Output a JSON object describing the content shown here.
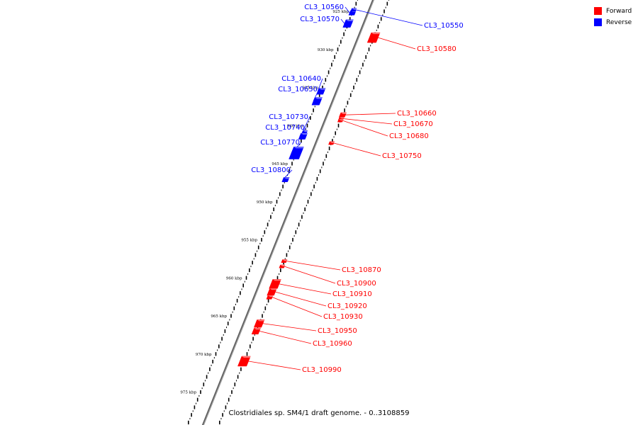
{
  "legend": {
    "forward_label": "Forward",
    "reverse_label": "Reverse",
    "forward_color": "#ff0000",
    "reverse_color": "#0000ff"
  },
  "caption": "Clostridiales sp. SM4/1 draft genome. - 0..3108859",
  "axis": {
    "unit": "kbp",
    "ticks": [
      {
        "kbp": 925,
        "label": "925 kbp"
      },
      {
        "kbp": 930,
        "label": "930 kbp"
      },
      {
        "kbp": 935,
        "label": "935 kbp"
      },
      {
        "kbp": 940,
        "label": "940 kbp"
      },
      {
        "kbp": 945,
        "label": "945 kbp"
      },
      {
        "kbp": 950,
        "label": "950 kbp"
      },
      {
        "kbp": 955,
        "label": "955 kbp"
      },
      {
        "kbp": 960,
        "label": "960 kbp"
      },
      {
        "kbp": 965,
        "label": "965 kbp"
      },
      {
        "kbp": 970,
        "label": "970 kbp"
      },
      {
        "kbp": 975,
        "label": "975 kbp"
      }
    ]
  },
  "genes": [
    {
      "name": "CL3_10560",
      "strand": "reverse",
      "start_kbp": 924.9,
      "end_kbp": 925.5
    },
    {
      "name": "CL3_10570",
      "strand": "reverse",
      "start_kbp": 926.1,
      "end_kbp": 927.1
    },
    {
      "name": "CL3_10550",
      "strand": "reverse",
      "start_kbp": 924.6,
      "end_kbp": 925.0
    },
    {
      "name": "CL3_10580",
      "strand": "forward",
      "start_kbp": 927.8,
      "end_kbp": 929.1
    },
    {
      "name": "CL3_10640",
      "strand": "reverse",
      "start_kbp": 935.1,
      "end_kbp": 935.9
    },
    {
      "name": "CL3_10650",
      "strand": "reverse",
      "start_kbp": 936.3,
      "end_kbp": 937.3
    },
    {
      "name": "CL3_10660",
      "strand": "forward",
      "start_kbp": 938.3,
      "end_kbp": 938.9
    },
    {
      "name": "CL3_10670",
      "strand": "forward",
      "start_kbp": 938.9,
      "end_kbp": 939.3
    },
    {
      "name": "CL3_10680",
      "strand": "forward",
      "start_kbp": 939.2,
      "end_kbp": 939.5
    },
    {
      "name": "CL3_10730",
      "strand": "reverse",
      "start_kbp": 940.7,
      "end_kbp": 941.0
    },
    {
      "name": "CL3_10740",
      "strand": "reverse",
      "start_kbp": 941.0,
      "end_kbp": 941.8
    },
    {
      "name": "CL3_10750",
      "strand": "forward",
      "start_kbp": 942.1,
      "end_kbp": 942.5
    },
    {
      "name": "CL3_10770",
      "strand": "reverse",
      "start_kbp": 942.8,
      "end_kbp": 944.4
    },
    {
      "name": "CL3_10800",
      "strand": "reverse",
      "start_kbp": 946.8,
      "end_kbp": 947.4
    },
    {
      "name": "CL3_10870",
      "strand": "forward",
      "start_kbp": 957.6,
      "end_kbp": 958.0
    },
    {
      "name": "CL3_10900",
      "strand": "forward",
      "start_kbp": 958.3,
      "end_kbp": 958.7
    },
    {
      "name": "CL3_10910",
      "strand": "forward",
      "start_kbp": 960.2,
      "end_kbp": 961.4
    },
    {
      "name": "CL3_10920",
      "strand": "forward",
      "start_kbp": 961.4,
      "end_kbp": 962.3
    },
    {
      "name": "CL3_10930",
      "strand": "forward",
      "start_kbp": 962.3,
      "end_kbp": 962.8
    },
    {
      "name": "CL3_10950",
      "strand": "forward",
      "start_kbp": 965.5,
      "end_kbp": 966.5
    },
    {
      "name": "CL3_10960",
      "strand": "forward",
      "start_kbp": 966.6,
      "end_kbp": 967.4
    },
    {
      "name": "CL3_10990",
      "strand": "forward",
      "start_kbp": 970.3,
      "end_kbp": 971.6
    }
  ]
}
